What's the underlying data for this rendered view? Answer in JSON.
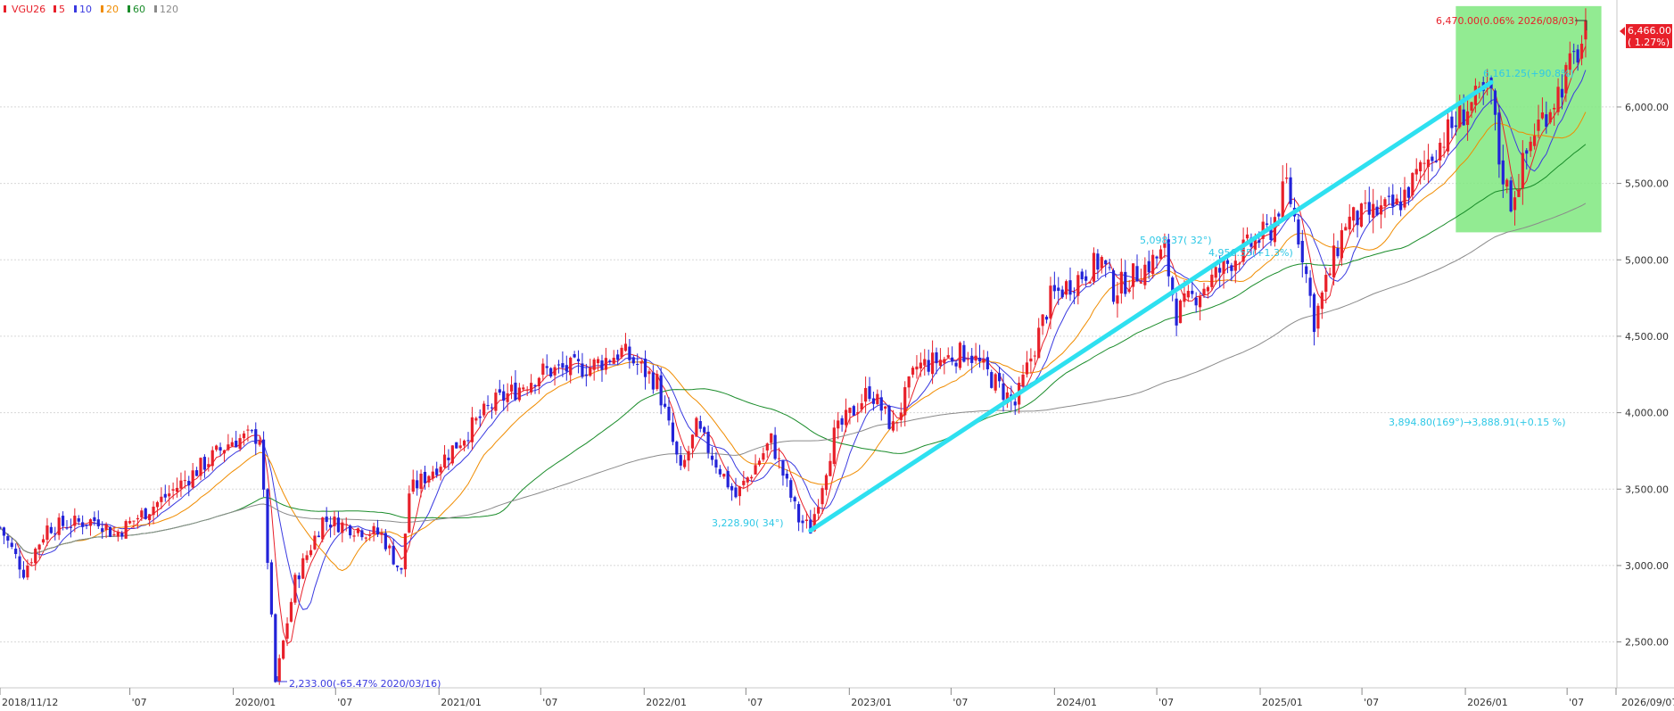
{
  "legend": {
    "symbol": "VGU26",
    "items": [
      {
        "label": "5",
        "color": "#e8202a"
      },
      {
        "label": "10",
        "color": "#3a3ae0"
      },
      {
        "label": "20",
        "color": "#f08c00"
      },
      {
        "label": "60",
        "color": "#1a8c2a"
      },
      {
        "label": "120",
        "color": "#8a8a8a"
      }
    ]
  },
  "current_price": {
    "value": "6,466.00",
    "change": "( 1.27%)"
  },
  "annotations": {
    "high": "6,470.00(0.06% 2026/08/03)",
    "low": "2,233.00(-65.47% 2020/03/16)",
    "trend_start": "3,228.90( 34°)",
    "trend_end": "6,161.25(+90.8%)",
    "mid_1": "5,098.37( 32°)",
    "mid_2": "4,956.55(+1.3%)",
    "angle_note": "3,894.80(169°)→3,888.91(+0.15 %)"
  },
  "chart_data": {
    "type": "candlestick",
    "symbol": "VGU26",
    "x_start": "2018/11/12",
    "x_end": "2026/09/07",
    "ylim": [
      2200,
      6700
    ],
    "y_ticks": [
      "2,500.00",
      "3,000.00",
      "3,500.00",
      "4,000.00",
      "4,500.00",
      "5,000.00",
      "5,500.00",
      "6,000.00"
    ],
    "x_ticks": [
      "2018/11/12",
      "'07",
      "2020/01",
      "'07",
      "2021/01",
      "'07",
      "2022/01",
      "'07",
      "2023/01",
      "'07",
      "2024/01",
      "'07",
      "2025/01",
      "'07",
      "2026/01",
      "'07",
      "2026/09/07"
    ],
    "price_path": [
      [
        "2018-11-12",
        3250
      ],
      [
        "2018-12-24",
        2960
      ],
      [
        "2019-02-04",
        3250
      ],
      [
        "2019-05-06",
        3300
      ],
      [
        "2019-06-03",
        3200
      ],
      [
        "2019-09-02",
        3450
      ],
      [
        "2019-12-30",
        3820
      ],
      [
        "2020-02-17",
        3850
      ],
      [
        "2020-03-16",
        2233
      ],
      [
        "2020-04-20",
        2900
      ],
      [
        "2020-06-08",
        3300
      ],
      [
        "2020-09-21",
        3200
      ],
      [
        "2020-10-26",
        2950
      ],
      [
        "2020-11-09",
        3480
      ],
      [
        "2021-01-04",
        3680
      ],
      [
        "2021-04-05",
        4050
      ],
      [
        "2021-07-05",
        4270
      ],
      [
        "2021-09-27",
        4300
      ],
      [
        "2021-11-22",
        4400
      ],
      [
        "2022-01-24",
        4200
      ],
      [
        "2022-03-07",
        3600
      ],
      [
        "2022-04-04",
        3900
      ],
      [
        "2022-06-13",
        3450
      ],
      [
        "2022-08-15",
        3820
      ],
      [
        "2022-10-03",
        3300
      ],
      [
        "2022-10-24",
        3240
      ],
      [
        "2022-12-05",
        3850
      ],
      [
        "2023-02-06",
        4150
      ],
      [
        "2023-03-20",
        3900
      ],
      [
        "2023-05-01",
        4300
      ],
      [
        "2023-07-31",
        4400
      ],
      [
        "2023-10-23",
        4050
      ],
      [
        "2023-12-25",
        4750
      ],
      [
        "2024-03-25",
        5000
      ],
      [
        "2024-04-15",
        4800
      ],
      [
        "2024-07-15",
        5050
      ],
      [
        "2024-08-05",
        4650
      ],
      [
        "2024-11-11",
        5000
      ],
      [
        "2025-01-20",
        5200
      ],
      [
        "2025-02-17",
        5500
      ],
      [
        "2025-03-17",
        5050
      ],
      [
        "2025-04-07",
        4600
      ],
      [
        "2025-06-02",
        5250
      ],
      [
        "2025-09-01",
        5350
      ],
      [
        "2025-11-03",
        5700
      ],
      [
        "2026-01-05",
        6000
      ],
      [
        "2026-02-16",
        6100
      ],
      [
        "2026-03-02",
        5650
      ],
      [
        "2026-03-23",
        5380
      ],
      [
        "2026-05-04",
        5850
      ],
      [
        "2026-06-15",
        6100
      ],
      [
        "2026-08-03",
        6466
      ]
    ],
    "moving_averages": [
      {
        "name": "5",
        "color": "#e8202a"
      },
      {
        "name": "10",
        "color": "#3a3ae0"
      },
      {
        "name": "20",
        "color": "#f08c00"
      },
      {
        "name": "60",
        "color": "#1a8c2a"
      },
      {
        "name": "120",
        "color": "#8a8a8a"
      }
    ],
    "trendline": {
      "from": [
        "2022-10-24",
        3228.9
      ],
      "to": [
        "2026-02-16",
        6161.25
      ],
      "color": "#2ee0f0"
    },
    "highlight_zone": {
      "from": "2025-12-15",
      "to": "2026-08-31",
      "y_from": 5180,
      "y_to": 6660,
      "color": "#7fe87f"
    }
  }
}
